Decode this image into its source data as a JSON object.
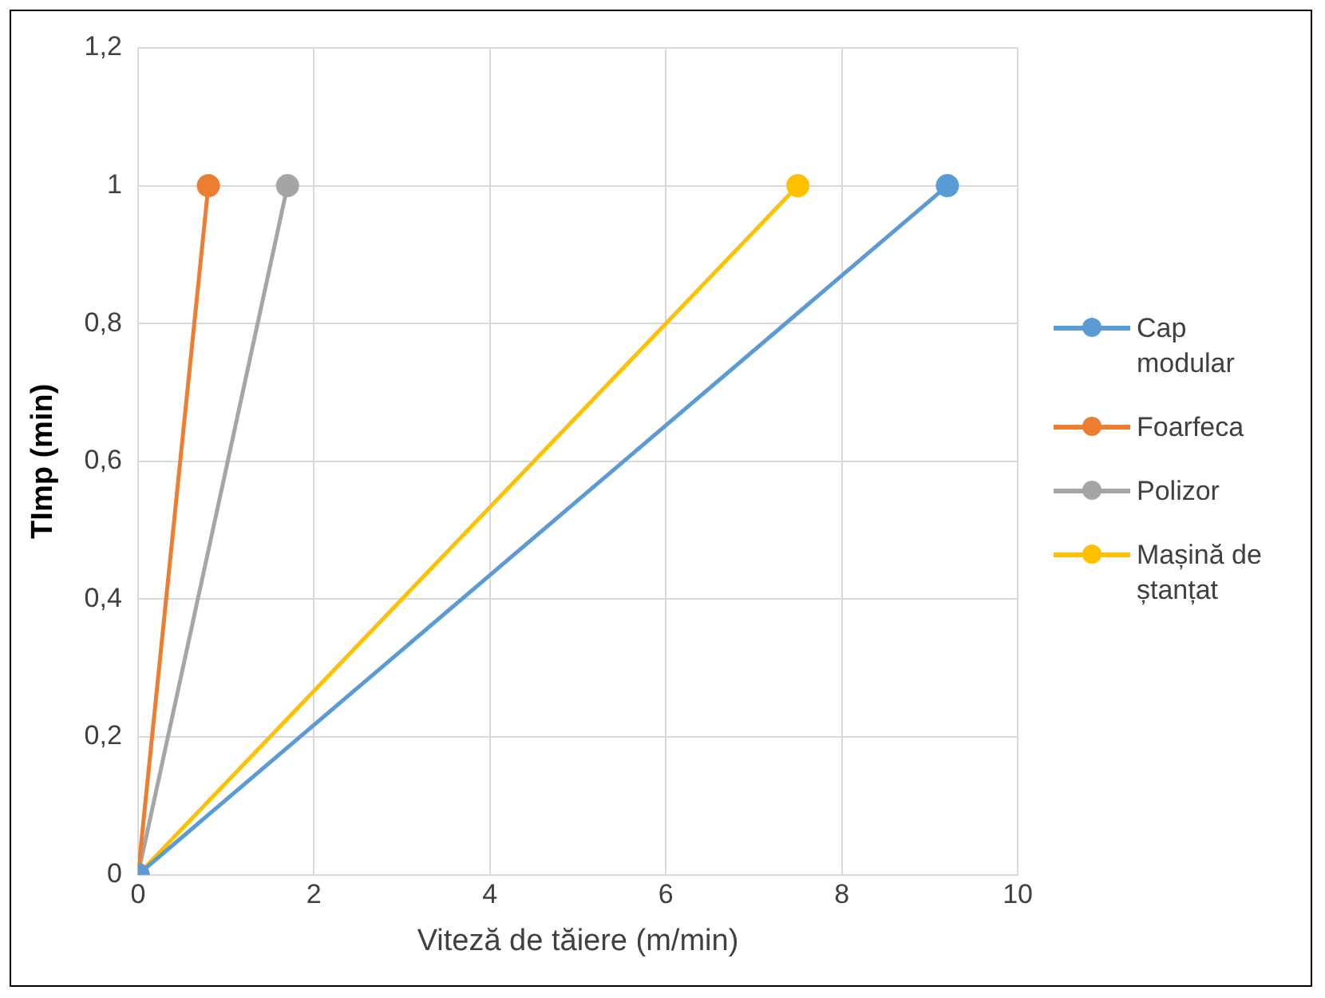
{
  "chart_data": {
    "type": "line",
    "xlabel": "Viteză de tăiere (m/min)",
    "ylabel": "TImp (min)",
    "xlim": [
      0,
      10
    ],
    "xticks": [
      0,
      2,
      4,
      6,
      8,
      10
    ],
    "ylim": [
      0,
      1.2
    ],
    "yticks": [
      0,
      {
        "value": 0.2,
        "label": "0,2"
      },
      {
        "value": 0.4,
        "label": "0,4"
      },
      {
        "value": 0.6,
        "label": "0,6"
      },
      {
        "value": 0.8,
        "label": "0,8"
      },
      1,
      {
        "value": 1.2,
        "label": "1,2"
      }
    ],
    "grid": true,
    "legend": "right",
    "marker": "circle",
    "line_style": "solid",
    "series": [
      {
        "name": "Cap modular",
        "color": "#5b9bd5",
        "x": [
          0,
          9.2
        ],
        "values": [
          0,
          1
        ]
      },
      {
        "name": "Foarfeca",
        "color": "#ed7d31",
        "x": [
          0,
          0.8
        ],
        "values": [
          0,
          1
        ]
      },
      {
        "name": "Polizor",
        "color": "#a5a5a5",
        "x": [
          0,
          1.7
        ],
        "values": [
          0,
          1
        ]
      },
      {
        "name": "Mașină de ștanțat",
        "color": "#ffc000",
        "x": [
          0,
          7.5
        ],
        "values": [
          0,
          1
        ]
      }
    ]
  }
}
